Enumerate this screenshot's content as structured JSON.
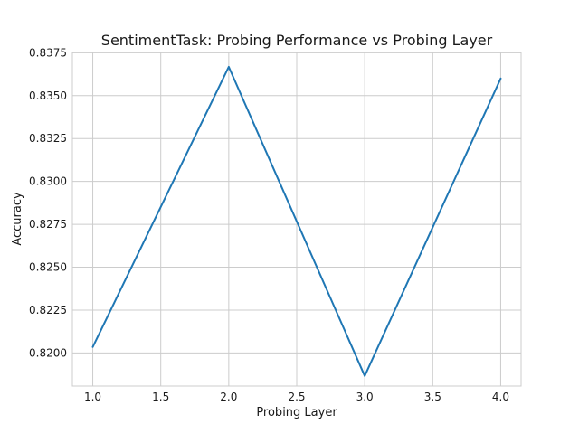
{
  "chart_data": {
    "type": "line",
    "title": "SentimentTask: Probing Performance vs Probing Layer",
    "xlabel": "Probing Layer",
    "ylabel": "Accuracy",
    "x": [
      1.0,
      2.0,
      3.0,
      4.0
    ],
    "series": [
      {
        "values": [
          0.82035,
          0.83668,
          0.81866,
          0.836
        ],
        "color": "#1f77b4"
      }
    ],
    "xlim": [
      0.85,
      4.15
    ],
    "ylim": [
      0.81807,
      0.83752
    ],
    "xticks": [
      1.0,
      1.5,
      2.0,
      2.5,
      3.0,
      3.5,
      4.0
    ],
    "xtick_labels": [
      "1.0",
      "1.5",
      "2.0",
      "2.5",
      "3.0",
      "3.5",
      "4.0"
    ],
    "yticks": [
      0.82,
      0.8225,
      0.825,
      0.8275,
      0.83,
      0.8325,
      0.835,
      0.8375
    ],
    "ytick_labels": [
      "0.8200",
      "0.8225",
      "0.8250",
      "0.8275",
      "0.8300",
      "0.8325",
      "0.8350",
      "0.8375"
    ],
    "grid": true,
    "gridColor": "#cccccc"
  }
}
